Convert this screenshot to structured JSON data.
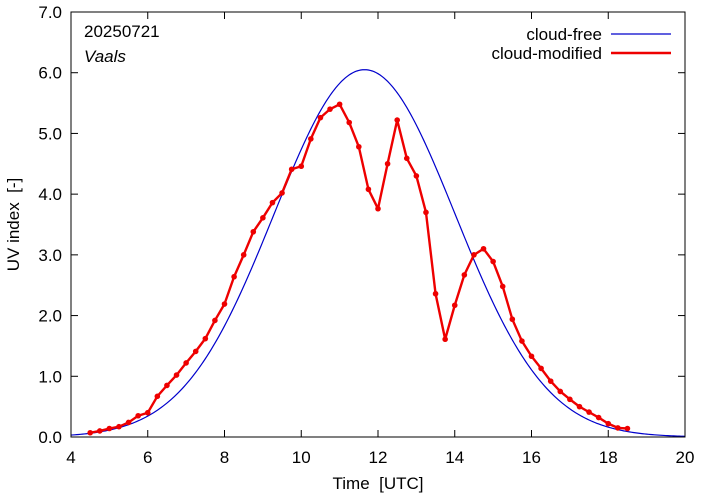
{
  "chart_data": {
    "type": "line",
    "date_label": "20250721",
    "location_label": "Vaals",
    "xlabel": "Time  [UTC]",
    "ylabel": "UV index  [-]",
    "xlim": [
      4,
      20
    ],
    "ylim": [
      0,
      7
    ],
    "x_ticks": [
      4,
      6,
      8,
      10,
      12,
      14,
      16,
      18,
      20
    ],
    "y_ticks": [
      0,
      1,
      2,
      3,
      4,
      5,
      6,
      7
    ],
    "x_tick_labels": [
      "4",
      "6",
      "8",
      "10",
      "12",
      "14",
      "16",
      "18",
      "20"
    ],
    "y_tick_labels": [
      "0.0",
      "1.0",
      "2.0",
      "3.0",
      "4.0",
      "5.0",
      "6.0",
      "7.0"
    ],
    "grid": false,
    "legend_position": "top-right",
    "series": [
      {
        "name": "cloud-free",
        "color": "#0000cc",
        "peak_x": 11.65,
        "peak_y": 6.05,
        "spread": 2.36,
        "markers": false
      },
      {
        "name": "cloud-modified",
        "color": "#ee0000",
        "markers": true,
        "points": [
          [
            4.5,
            0.07
          ],
          [
            4.75,
            0.1
          ],
          [
            5.0,
            0.14
          ],
          [
            5.25,
            0.17
          ],
          [
            5.5,
            0.24
          ],
          [
            5.75,
            0.35
          ],
          [
            6.0,
            0.4
          ],
          [
            6.25,
            0.67
          ],
          [
            6.5,
            0.85
          ],
          [
            6.75,
            1.02
          ],
          [
            7.0,
            1.22
          ],
          [
            7.25,
            1.41
          ],
          [
            7.5,
            1.62
          ],
          [
            7.75,
            1.92
          ],
          [
            8.0,
            2.19
          ],
          [
            8.25,
            2.64
          ],
          [
            8.5,
            3.0
          ],
          [
            8.75,
            3.38
          ],
          [
            9.0,
            3.61
          ],
          [
            9.25,
            3.86
          ],
          [
            9.5,
            4.02
          ],
          [
            9.75,
            4.41
          ],
          [
            10.0,
            4.46
          ],
          [
            10.25,
            4.91
          ],
          [
            10.5,
            5.26
          ],
          [
            10.75,
            5.4
          ],
          [
            11.0,
            5.48
          ],
          [
            11.25,
            5.18
          ],
          [
            11.5,
            4.78
          ],
          [
            11.75,
            4.08
          ],
          [
            12.0,
            3.76
          ],
          [
            12.25,
            4.5
          ],
          [
            12.5,
            5.22
          ],
          [
            12.75,
            4.59
          ],
          [
            13.0,
            4.3
          ],
          [
            13.25,
            3.7
          ],
          [
            13.5,
            2.36
          ],
          [
            13.75,
            1.61
          ],
          [
            14.0,
            2.17
          ],
          [
            14.25,
            2.67
          ],
          [
            14.5,
            3.0
          ],
          [
            14.75,
            3.1
          ],
          [
            15.0,
            2.89
          ],
          [
            15.25,
            2.48
          ],
          [
            15.5,
            1.94
          ],
          [
            15.75,
            1.58
          ],
          [
            16.0,
            1.33
          ],
          [
            16.25,
            1.13
          ],
          [
            16.5,
            0.92
          ],
          [
            16.75,
            0.75
          ],
          [
            17.0,
            0.62
          ],
          [
            17.25,
            0.5
          ],
          [
            17.5,
            0.41
          ],
          [
            17.75,
            0.32
          ],
          [
            18.0,
            0.22
          ],
          [
            18.25,
            0.15
          ],
          [
            18.5,
            0.14
          ]
        ]
      }
    ]
  }
}
